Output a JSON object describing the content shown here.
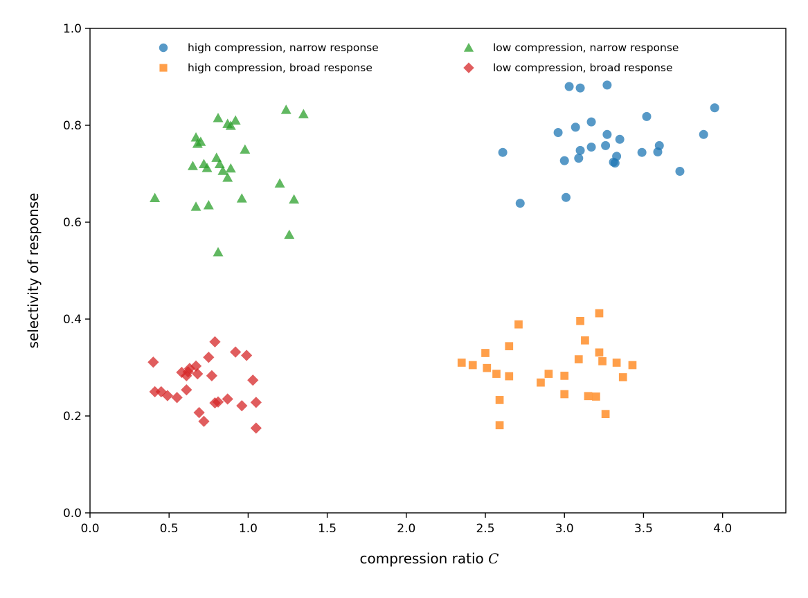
{
  "chart_data": {
    "type": "scatter",
    "title": "",
    "xlabel": "compression ratio",
    "xlabel_symbol": "C",
    "ylabel": "selectivity of response",
    "xlim": [
      0.0,
      4.4
    ],
    "ylim": [
      0.0,
      1.0
    ],
    "xticks": [
      0.0,
      0.5,
      1.0,
      1.5,
      2.0,
      2.5,
      3.0,
      3.5,
      4.0
    ],
    "xtick_labels": [
      "0.0",
      "0.5",
      "1.0",
      "1.5",
      "2.0",
      "2.5",
      "3.0",
      "3.5",
      "4.0"
    ],
    "yticks": [
      0.0,
      0.2,
      0.4,
      0.6,
      0.8,
      1.0
    ],
    "ytick_labels": [
      "0.0",
      "0.2",
      "0.4",
      "0.6",
      "0.8",
      "1.0"
    ],
    "grid": false,
    "legend_position": "top-center, two columns",
    "series": [
      {
        "name": "high compression, narrow response",
        "marker": "circle",
        "color": "#1f77b4",
        "points": [
          [
            3.03,
            0.88
          ],
          [
            3.1,
            0.877
          ],
          [
            3.27,
            0.883
          ],
          [
            3.95,
            0.836
          ],
          [
            3.52,
            0.818
          ],
          [
            3.17,
            0.807
          ],
          [
            3.07,
            0.796
          ],
          [
            2.96,
            0.785
          ],
          [
            3.27,
            0.781
          ],
          [
            3.88,
            0.781
          ],
          [
            3.35,
            0.771
          ],
          [
            3.6,
            0.758
          ],
          [
            3.17,
            0.755
          ],
          [
            3.26,
            0.758
          ],
          [
            3.1,
            0.748
          ],
          [
            2.61,
            0.744
          ],
          [
            3.49,
            0.744
          ],
          [
            3.59,
            0.745
          ],
          [
            3.33,
            0.736
          ],
          [
            3.09,
            0.732
          ],
          [
            3.0,
            0.727
          ],
          [
            3.31,
            0.724
          ],
          [
            3.32,
            0.722
          ],
          [
            3.73,
            0.705
          ],
          [
            3.01,
            0.651
          ],
          [
            2.72,
            0.639
          ]
        ]
      },
      {
        "name": "high compression, broad response",
        "marker": "square",
        "color": "#ff7f0e",
        "points": [
          [
            3.22,
            0.412
          ],
          [
            3.1,
            0.396
          ],
          [
            2.71,
            0.389
          ],
          [
            3.13,
            0.356
          ],
          [
            2.65,
            0.344
          ],
          [
            2.5,
            0.33
          ],
          [
            3.22,
            0.331
          ],
          [
            3.09,
            0.317
          ],
          [
            3.24,
            0.313
          ],
          [
            3.33,
            0.31
          ],
          [
            3.43,
            0.305
          ],
          [
            2.35,
            0.31
          ],
          [
            2.42,
            0.305
          ],
          [
            2.51,
            0.299
          ],
          [
            2.57,
            0.287
          ],
          [
            2.65,
            0.282
          ],
          [
            2.9,
            0.287
          ],
          [
            3.0,
            0.283
          ],
          [
            3.37,
            0.28
          ],
          [
            2.85,
            0.269
          ],
          [
            3.0,
            0.245
          ],
          [
            3.15,
            0.241
          ],
          [
            3.2,
            0.24
          ],
          [
            2.59,
            0.233
          ],
          [
            3.26,
            0.204
          ],
          [
            2.59,
            0.181
          ]
        ]
      },
      {
        "name": "low compression, narrow response",
        "marker": "triangle",
        "color": "#2ca02c",
        "points": [
          [
            1.24,
            0.832
          ],
          [
            1.35,
            0.823
          ],
          [
            0.81,
            0.815
          ],
          [
            0.92,
            0.81
          ],
          [
            0.87,
            0.803
          ],
          [
            0.89,
            0.799
          ],
          [
            0.67,
            0.775
          ],
          [
            0.7,
            0.766
          ],
          [
            0.68,
            0.762
          ],
          [
            0.98,
            0.75
          ],
          [
            0.8,
            0.733
          ],
          [
            0.82,
            0.72
          ],
          [
            0.72,
            0.72
          ],
          [
            0.65,
            0.716
          ],
          [
            0.74,
            0.712
          ],
          [
            0.89,
            0.711
          ],
          [
            0.84,
            0.706
          ],
          [
            0.87,
            0.692
          ],
          [
            1.2,
            0.68
          ],
          [
            0.41,
            0.65
          ],
          [
            0.96,
            0.649
          ],
          [
            1.29,
            0.647
          ],
          [
            0.75,
            0.635
          ],
          [
            0.67,
            0.632
          ],
          [
            1.26,
            0.574
          ],
          [
            0.81,
            0.538
          ]
        ]
      },
      {
        "name": "low compression, broad response",
        "marker": "diamond",
        "color": "#d62728",
        "points": [
          [
            0.79,
            0.353
          ],
          [
            0.92,
            0.332
          ],
          [
            0.99,
            0.325
          ],
          [
            0.75,
            0.321
          ],
          [
            0.4,
            0.311
          ],
          [
            0.67,
            0.303
          ],
          [
            0.63,
            0.298
          ],
          [
            0.58,
            0.29
          ],
          [
            0.62,
            0.291
          ],
          [
            0.68,
            0.287
          ],
          [
            0.61,
            0.283
          ],
          [
            0.77,
            0.283
          ],
          [
            1.03,
            0.274
          ],
          [
            0.61,
            0.254
          ],
          [
            0.41,
            0.25
          ],
          [
            0.45,
            0.25
          ],
          [
            0.49,
            0.242
          ],
          [
            0.55,
            0.238
          ],
          [
            0.87,
            0.235
          ],
          [
            0.79,
            0.227
          ],
          [
            0.81,
            0.229
          ],
          [
            0.96,
            0.221
          ],
          [
            1.05,
            0.228
          ],
          [
            0.69,
            0.207
          ],
          [
            0.72,
            0.189
          ],
          [
            1.05,
            0.175
          ]
        ]
      }
    ]
  }
}
